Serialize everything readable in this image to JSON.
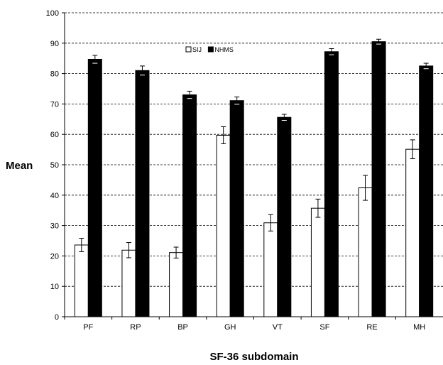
{
  "chart_data": {
    "type": "bar",
    "xlabel": "SF-36 subdomain",
    "ylabel": "Mean",
    "ylim": [
      0,
      100
    ],
    "yticks": [
      0,
      10,
      20,
      30,
      40,
      50,
      60,
      70,
      80,
      90,
      100
    ],
    "grid": "horizontal dashed",
    "legend_position": "top-center",
    "categories": [
      "PF",
      "RP",
      "BP",
      "GH",
      "VT",
      "SF",
      "RE",
      "MH"
    ],
    "series": [
      {
        "name": "SIJ",
        "color": "#ffffff",
        "values": [
          23.6,
          21.9,
          21.1,
          59.7,
          30.9,
          35.7,
          42.4,
          55.1
        ],
        "errors": [
          2.2,
          2.5,
          1.8,
          2.8,
          2.7,
          3.0,
          4.1,
          3.1
        ]
      },
      {
        "name": "NHMS",
        "color": "#000000",
        "values": [
          84.7,
          81.0,
          73.0,
          71.1,
          65.6,
          87.2,
          90.5,
          82.5
        ],
        "errors": [
          1.3,
          1.5,
          1.2,
          1.2,
          1.0,
          1.0,
          0.8,
          0.9
        ]
      }
    ]
  }
}
